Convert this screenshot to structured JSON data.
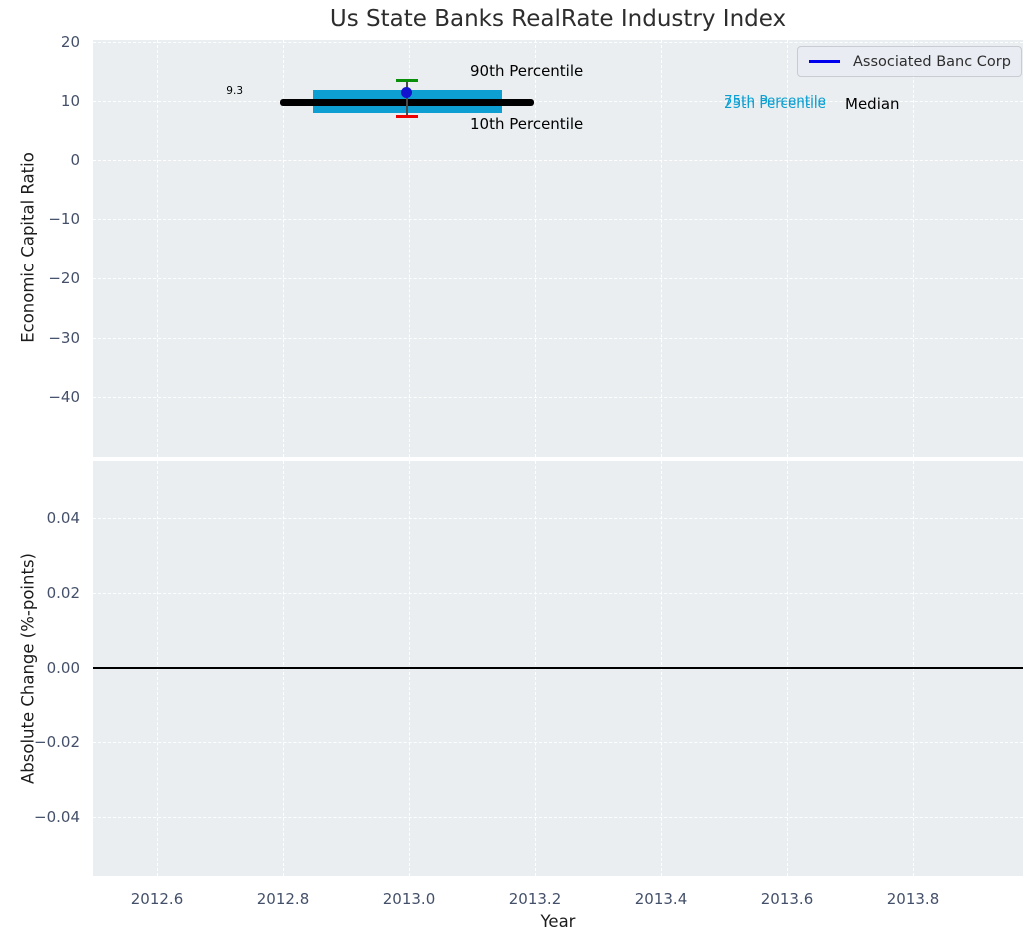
{
  "title": "Us State Banks RealRate Industry Index",
  "legend": {
    "label": "Associated Banc Corp",
    "line_color": "#0000ee"
  },
  "top_chart": {
    "ylabel": "Economic Capital Ratio",
    "yticks": [
      "20",
      "10",
      "0",
      "−10",
      "−20",
      "−30",
      "−40"
    ],
    "labels": {
      "median_value": "9.3",
      "p90": "90th Percentile",
      "p10": "10th Percentile",
      "p75": "75th Percentile",
      "p25": "25th Percentile",
      "median": "Median"
    }
  },
  "bottom_chart": {
    "ylabel": "Absolute Change (%-points)",
    "yticks": [
      "0.04",
      "0.02",
      "0.00",
      "−0.02",
      "−0.04"
    ]
  },
  "x_axis": {
    "label": "Year",
    "ticks": [
      "2012.6",
      "2012.8",
      "2013.0",
      "2013.2",
      "2013.4",
      "2013.6",
      "2013.8"
    ]
  },
  "colors": {
    "axes_background": "#eaeef0",
    "grid": "#ffffff",
    "tick_label": "#44506a",
    "iqr_band": "#0d9fd1",
    "median_line": "#000000",
    "p90_cap": "#0a8f0a",
    "p10_cap": "#ee0000",
    "company_point": "#1313cf"
  },
  "chart_data": [
    {
      "type": "line",
      "title": "Us State Banks RealRate Industry Index",
      "xlabel": "Year",
      "ylabel": "Economic Capital Ratio",
      "xlim": [
        2012.5,
        2013.97
      ],
      "ylim": [
        -50.5,
        20.5
      ],
      "xticks": [
        2012.6,
        2012.8,
        2013.0,
        2013.2,
        2013.4,
        2013.6,
        2013.8
      ],
      "yticks": [
        20,
        10,
        0,
        -10,
        -20,
        -30,
        -40
      ],
      "grid": "dashed-white-both-axes",
      "legend_position": "upper right",
      "series": [
        {
          "name": "Associated Banc Corp",
          "style": "point",
          "color": "#0000ff",
          "x": [
            2013.0
          ],
          "y": [
            11.3
          ]
        },
        {
          "name": "Median",
          "style": "thick line",
          "color": "#000000",
          "x": [
            2012.8,
            2013.2
          ],
          "y": [
            9.3,
            9.3
          ]
        },
        {
          "name": "25th-75th Percentile band",
          "style": "thick band",
          "color": "#0d9fd1",
          "x": [
            2012.85,
            2013.15
          ],
          "y_low": 9.0,
          "y_high": 9.6
        },
        {
          "name": "90th Percentile",
          "style": "errorbar cap",
          "color": "#0a8f0a",
          "x": [
            2013.0
          ],
          "y": [
            13.5
          ]
        },
        {
          "name": "10th Percentile",
          "style": "errorbar cap",
          "color": "#ee0000",
          "x": [
            2013.0
          ],
          "y": [
            7.4
          ]
        }
      ],
      "annotations": [
        {
          "text": "9.3",
          "x": 2012.73,
          "y": 9.3,
          "color": "#000000"
        },
        {
          "text": "90th Percentile",
          "x": 2013.1,
          "y": 14.9,
          "color": "#000000"
        },
        {
          "text": "10th Percentile",
          "x": 2013.1,
          "y": 6.0,
          "color": "#000000"
        },
        {
          "text": "75th Percentile",
          "x": 2013.5,
          "y": 9.6,
          "color": "#0d9fd1"
        },
        {
          "text": "25th Percentile",
          "x": 2013.5,
          "y": 9.1,
          "color": "#0d9fd1"
        },
        {
          "text": "Median",
          "x": 2013.69,
          "y": 9.3,
          "color": "#000000"
        }
      ]
    },
    {
      "type": "line",
      "xlabel": "Year",
      "ylabel": "Absolute Change (%-points)",
      "xlim": [
        2012.5,
        2013.97
      ],
      "ylim": [
        -0.056,
        0.055
      ],
      "xticks": [
        2012.6,
        2012.8,
        2013.0,
        2013.2,
        2013.4,
        2013.6,
        2013.8
      ],
      "yticks": [
        0.04,
        0.02,
        0.0,
        -0.02,
        -0.04
      ],
      "grid": "dashed-white-both-axes",
      "series": [
        {
          "name": "zero line",
          "style": "solid line",
          "color": "#000000",
          "x": [
            2012.5,
            2013.97
          ],
          "y": [
            0,
            0
          ]
        }
      ]
    }
  ]
}
